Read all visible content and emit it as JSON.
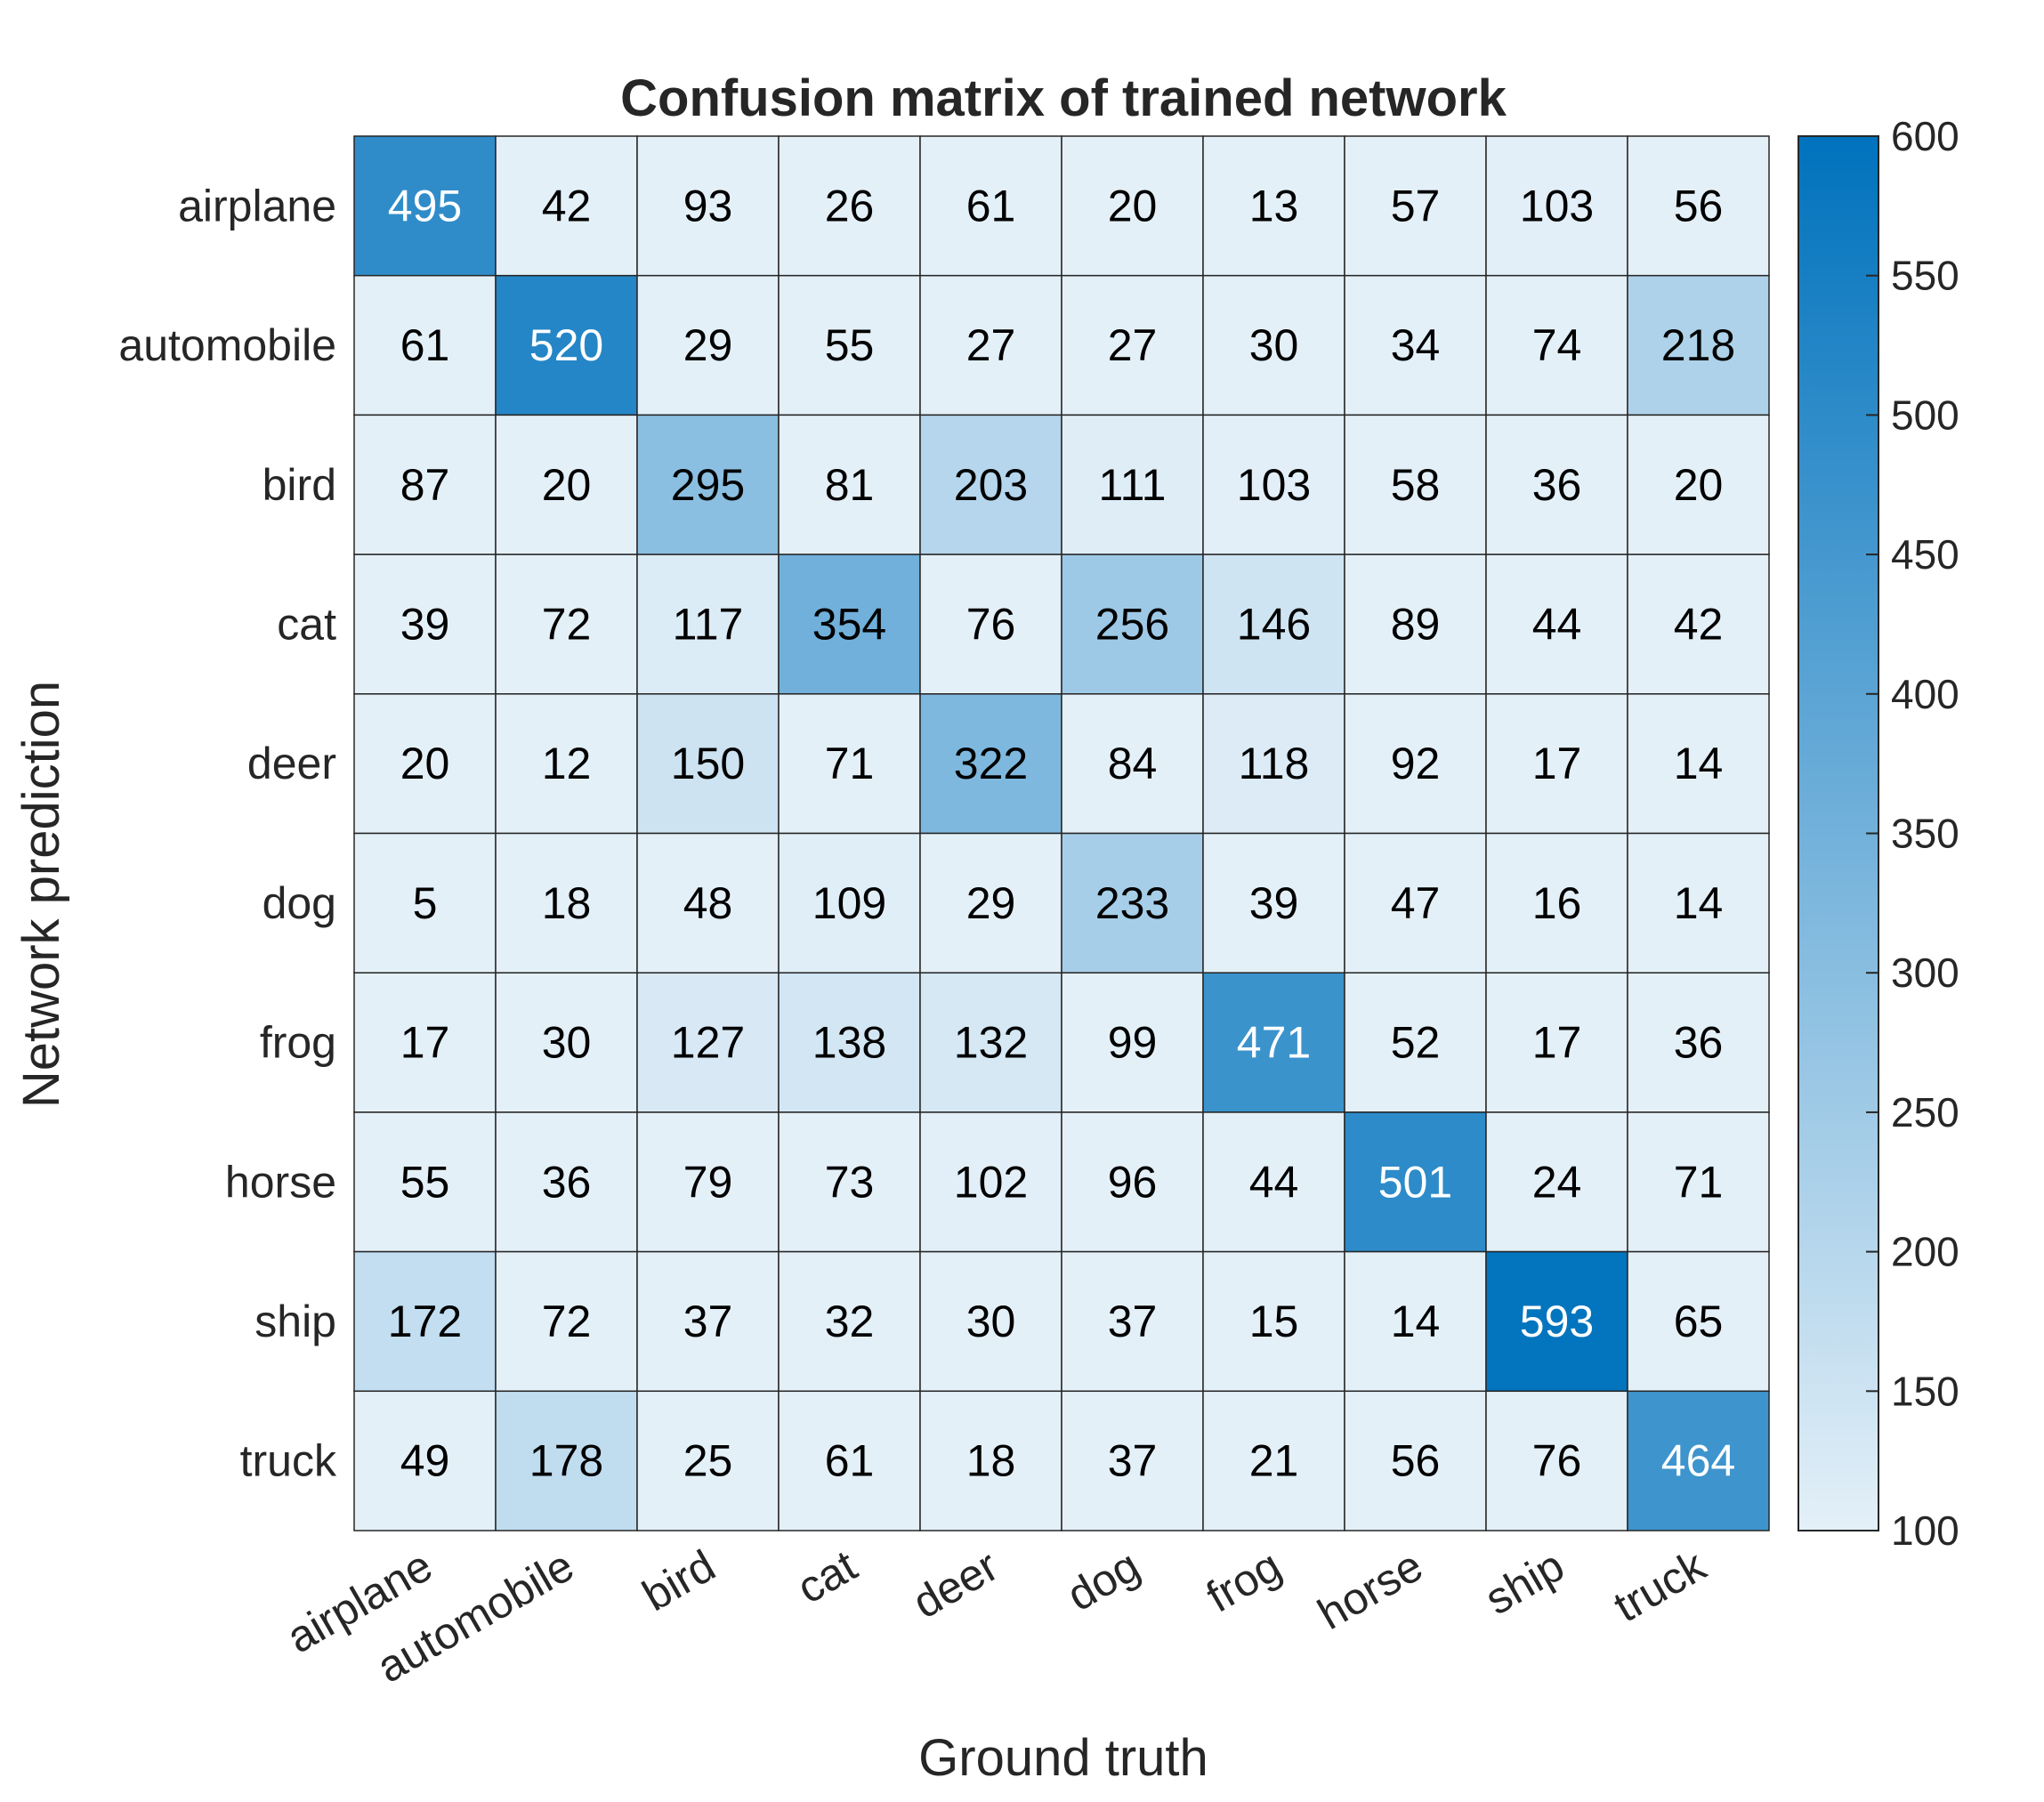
{
  "chart_data": {
    "type": "heatmap",
    "title": "Confusion matrix of trained network",
    "xlabel": "Ground truth",
    "ylabel": "Network prediction",
    "x_categories": [
      "airplane",
      "automobile",
      "bird",
      "cat",
      "deer",
      "dog",
      "frog",
      "horse",
      "ship",
      "truck"
    ],
    "y_categories": [
      "airplane",
      "automobile",
      "bird",
      "cat",
      "deer",
      "dog",
      "frog",
      "horse",
      "ship",
      "truck"
    ],
    "values": [
      [
        495,
        42,
        93,
        26,
        61,
        20,
        13,
        57,
        103,
        56
      ],
      [
        61,
        520,
        29,
        55,
        27,
        27,
        30,
        34,
        74,
        218
      ],
      [
        87,
        20,
        295,
        81,
        203,
        111,
        103,
        58,
        36,
        20
      ],
      [
        39,
        72,
        117,
        354,
        76,
        256,
        146,
        89,
        44,
        42
      ],
      [
        20,
        12,
        150,
        71,
        322,
        84,
        118,
        92,
        17,
        14
      ],
      [
        5,
        18,
        48,
        109,
        29,
        233,
        39,
        47,
        16,
        14
      ],
      [
        17,
        30,
        127,
        138,
        132,
        99,
        471,
        52,
        17,
        36
      ],
      [
        55,
        36,
        79,
        73,
        102,
        96,
        44,
        501,
        24,
        71
      ],
      [
        172,
        72,
        37,
        32,
        30,
        37,
        15,
        14,
        593,
        65
      ],
      [
        49,
        178,
        25,
        61,
        18,
        37,
        21,
        56,
        76,
        464
      ]
    ],
    "colorbar": {
      "range": [
        100,
        600
      ],
      "ticks": [
        "100",
        "150",
        "200",
        "250",
        "300",
        "350",
        "400",
        "450",
        "500",
        "550",
        "600"
      ],
      "color_low": "#e4f0f8",
      "color_high": "#0072bd"
    },
    "grid": true
  }
}
